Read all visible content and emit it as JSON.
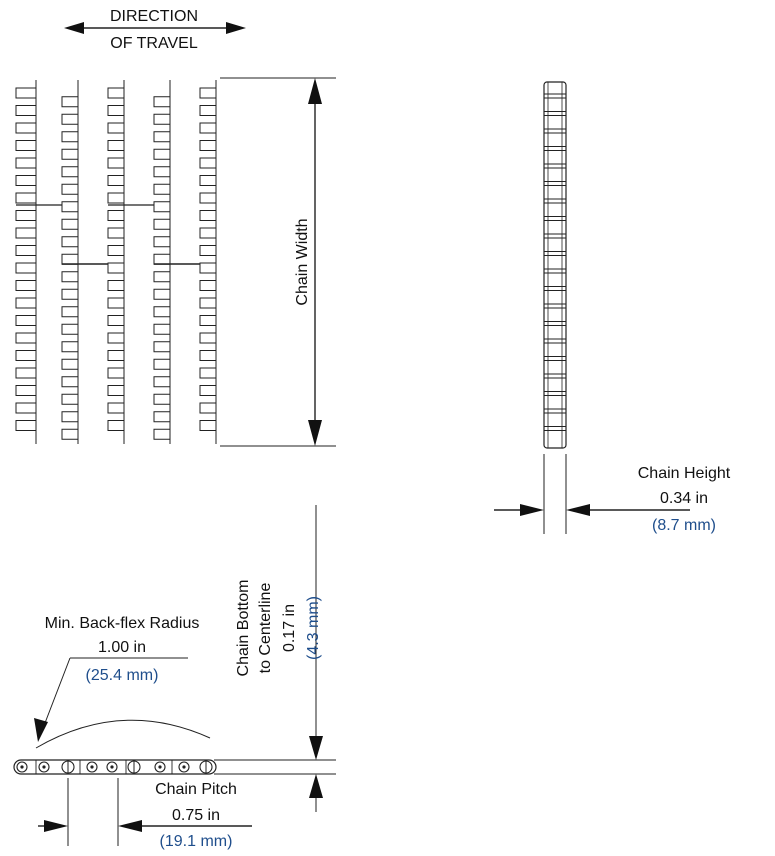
{
  "direction": {
    "line1": "DIRECTION",
    "line2": "OF TRAVEL"
  },
  "chain_width": {
    "label": "Chain Width"
  },
  "chain_height": {
    "label": "Chain Height",
    "value_in": "0.34 in",
    "value_mm": "(8.7 mm)"
  },
  "centerline": {
    "line1": "Chain Bottom",
    "line2": "to Centerline",
    "value_in": "0.17 in",
    "value_mm": "(4.3 mm)"
  },
  "backflex": {
    "label": "Min. Back-flex Radius",
    "value_in": "1.00 in",
    "value_mm": "(25.4 mm)"
  },
  "pitch": {
    "label": "Chain Pitch",
    "value_in": "0.75 in",
    "value_mm": "(19.1 mm)"
  },
  "colors": {
    "line": "#222222",
    "metric": "#1f4e8c",
    "background": "#ffffff"
  }
}
